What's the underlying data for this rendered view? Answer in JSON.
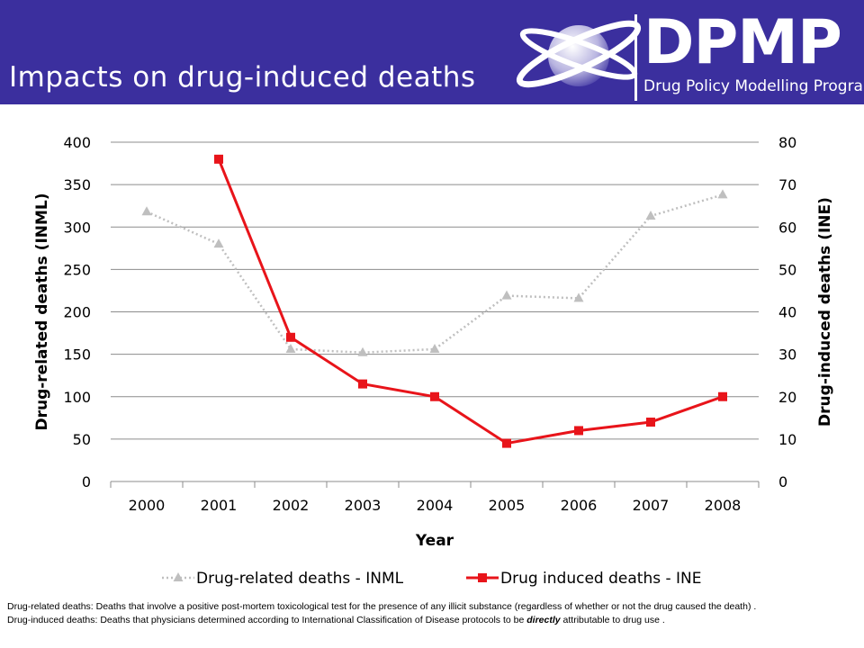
{
  "header": {
    "title": "Impacts on drug-induced deaths",
    "logo_name": "DPMP",
    "logo_tagline": "Drug Policy Modelling Program",
    "background_color": "#3b2f9e"
  },
  "chart_data": {
    "type": "line",
    "categories": [
      "2000",
      "2001",
      "2002",
      "2003",
      "2004",
      "2005",
      "2006",
      "2007",
      "2008"
    ],
    "xlabel": "Year",
    "y_left": {
      "label": "Drug-related deaths (INML)",
      "range": [
        0,
        400
      ],
      "ticks": [
        "0",
        "50",
        "100",
        "150",
        "200",
        "250",
        "300",
        "350",
        "400"
      ]
    },
    "y_right": {
      "label": "Drug-induced  deaths (INE)",
      "range": [
        0,
        80
      ],
      "ticks": [
        "0",
        "10",
        "20",
        "30",
        "40",
        "50",
        "60",
        "70",
        "80"
      ]
    },
    "grid": true,
    "legend_position": "bottom",
    "series": [
      {
        "name": "Drug-related deaths - INML",
        "axis": "left",
        "color": "#bfbfbf",
        "line_style": "dotted",
        "marker": "triangle",
        "values": [
          318,
          280,
          156,
          152,
          156,
          219,
          216,
          313,
          338
        ]
      },
      {
        "name": "Drug induced deaths - INE",
        "axis": "right",
        "color": "#e8141a",
        "line_style": "solid",
        "marker": "square",
        "values": [
          null,
          76,
          34,
          23,
          20,
          9,
          12,
          14,
          20
        ]
      }
    ]
  },
  "footnote": {
    "def1": "Drug-related deaths:  Deaths that involve a positive post-mortem toxicological test for the presence of any illicit substance (regardless of whether or not the drug caused the death) .",
    "def2_before": "Drug-induced deaths: Deaths that physicians determined according to International Classification of Disease protocols to be ",
    "def2_emphasis": "directly",
    "def2_after": " attributable to drug use ."
  }
}
